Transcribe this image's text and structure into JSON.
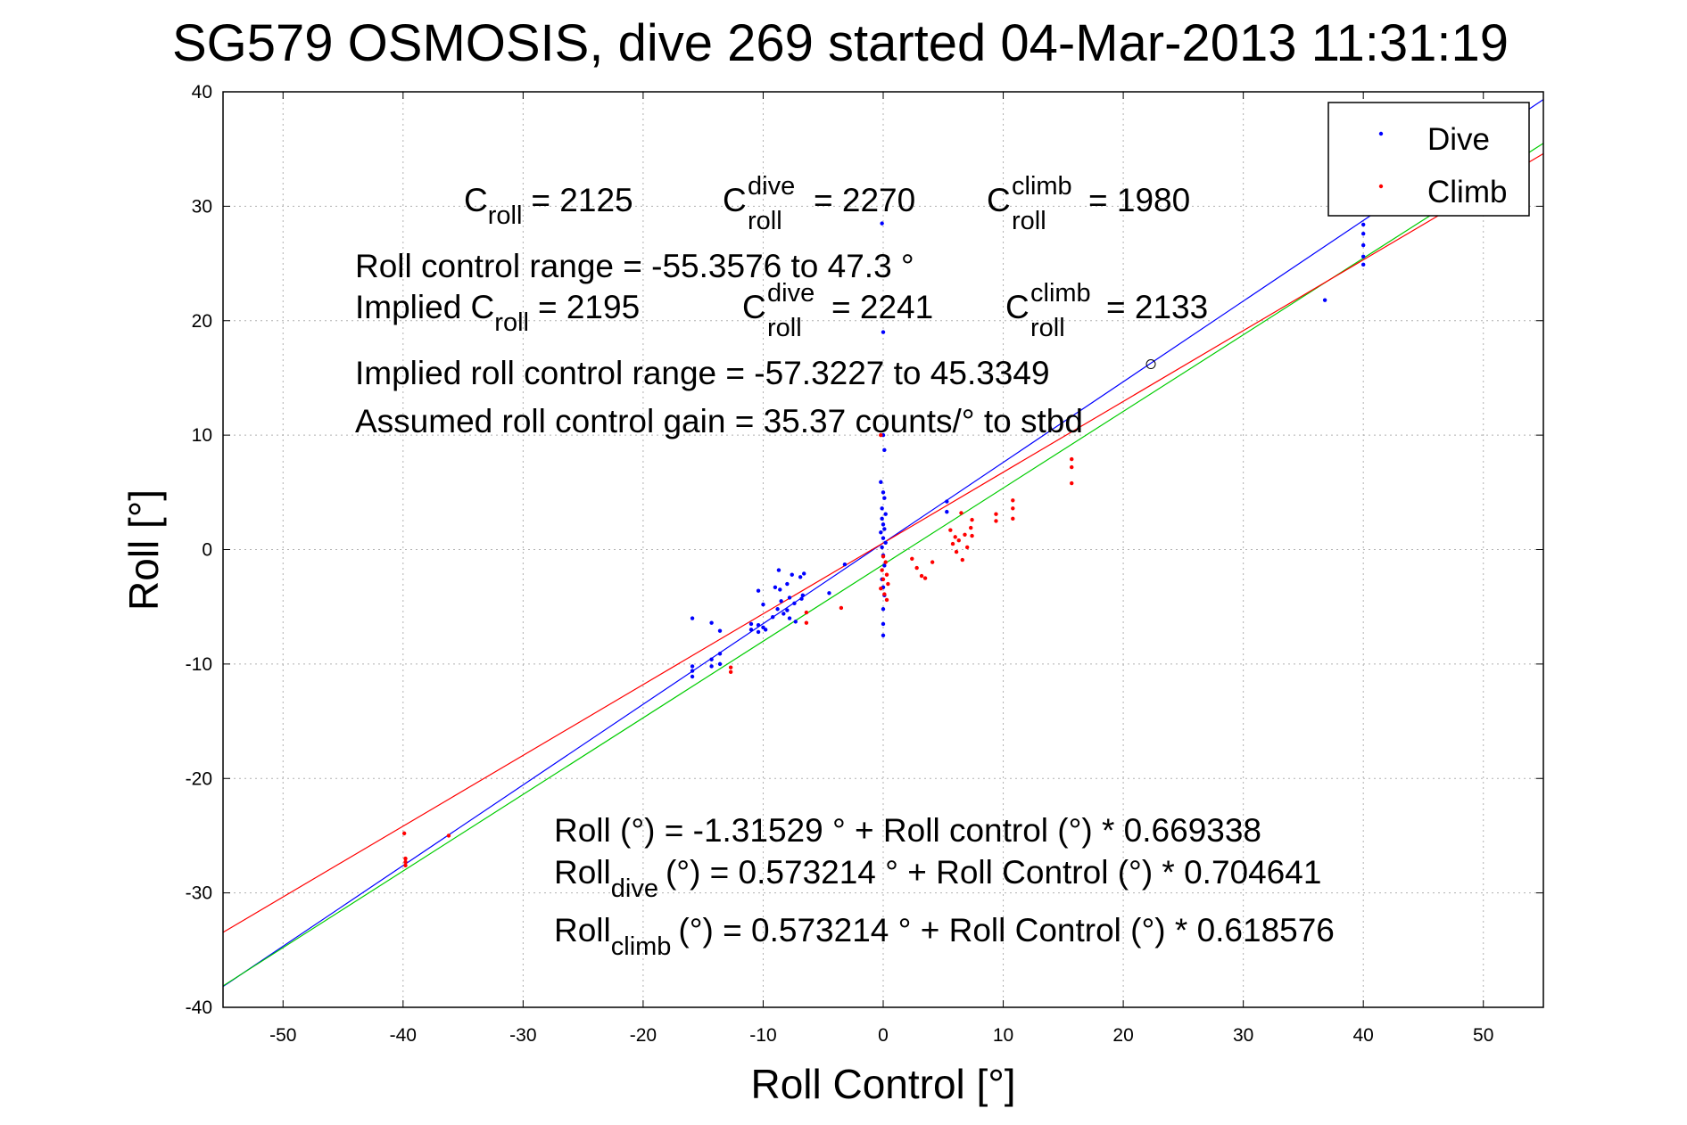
{
  "chart_data": {
    "type": "scatter",
    "title": "SG579 OSMOSIS, dive 269 started 04-Mar-2013 11:31:19",
    "xlabel": "Roll Control [°]",
    "ylabel": "Roll [°]",
    "xlim": [
      -55,
      55
    ],
    "ylim": [
      -40,
      40
    ],
    "xticks": [
      -50,
      -40,
      -30,
      -20,
      -10,
      0,
      10,
      20,
      30,
      40,
      50
    ],
    "yticks": [
      -40,
      -30,
      -20,
      -10,
      0,
      10,
      20,
      30,
      40
    ],
    "grid": true,
    "legend_position": "top-right",
    "colors": {
      "dive": "#0000ff",
      "climb": "#ff0000",
      "overall_fit": "#00cc00"
    },
    "series": [
      {
        "name": "Dive",
        "color": "#0000ff",
        "points": [
          [
            -15.9,
            -6
          ],
          [
            -15.9,
            -10.2
          ],
          [
            -15.9,
            -10.6
          ],
          [
            -15.9,
            -11.1
          ],
          [
            -14.3,
            -6.4
          ],
          [
            -14.3,
            -9.6
          ],
          [
            -14.3,
            -10.2
          ],
          [
            -13.6,
            -7.1
          ],
          [
            -13.6,
            -9.1
          ],
          [
            -13.6,
            -10.0
          ],
          [
            -11,
            -6.5
          ],
          [
            -11,
            -7.0
          ],
          [
            -10.4,
            -3.6
          ],
          [
            -10.4,
            -6.6
          ],
          [
            -10.4,
            -7.2
          ],
          [
            -10,
            -4.8
          ],
          [
            -10,
            -6.8
          ],
          [
            -9.8,
            -7.0
          ],
          [
            -9.2,
            -5.9
          ],
          [
            -9.0,
            -3.3
          ],
          [
            -8.8,
            -5.2
          ],
          [
            -8.7,
            -1.8
          ],
          [
            -8.6,
            -3.5
          ],
          [
            -8.5,
            -4.5
          ],
          [
            -8.3,
            -5.6
          ],
          [
            -8.0,
            -3.0
          ],
          [
            -8.0,
            -5.3
          ],
          [
            -7.8,
            -4.2
          ],
          [
            -7.8,
            -6.0
          ],
          [
            -7.6,
            -2.2
          ],
          [
            -7.4,
            -4.7
          ],
          [
            -7.3,
            -6.3
          ],
          [
            -6.9,
            -2.4
          ],
          [
            -6.8,
            -4.3
          ],
          [
            -6.7,
            -4.0
          ],
          [
            -6.6,
            -2.1
          ],
          [
            -4.5,
            -3.8
          ],
          [
            -3.2,
            -1.3
          ],
          [
            -0.1,
            28.5
          ],
          [
            0.0,
            19.0
          ],
          [
            0.0,
            10.0
          ],
          [
            0.1,
            8.7
          ],
          [
            -0.2,
            5.9
          ],
          [
            0.0,
            5.0
          ],
          [
            0.1,
            4.5
          ],
          [
            -0.1,
            3.6
          ],
          [
            0.2,
            3.1
          ],
          [
            -0.1,
            2.7
          ],
          [
            0.0,
            2.2
          ],
          [
            0.1,
            1.8
          ],
          [
            -0.2,
            1.5
          ],
          [
            0.0,
            1.0
          ],
          [
            0.2,
            0.6
          ],
          [
            -0.1,
            0.2
          ],
          [
            0.0,
            -0.5
          ],
          [
            0.1,
            -1.4
          ],
          [
            -0.1,
            -2.6
          ],
          [
            0.0,
            -3.3
          ],
          [
            0.1,
            -4.0
          ],
          [
            0.0,
            -5.2
          ],
          [
            0.0,
            -6.5
          ],
          [
            0.0,
            -7.5
          ],
          [
            5.3,
            4.2
          ],
          [
            5.3,
            3.3
          ],
          [
            36.8,
            21.8
          ],
          [
            40.0,
            24.9
          ],
          [
            40.0,
            25.6
          ],
          [
            40.0,
            26.6
          ],
          [
            40.0,
            27.6
          ],
          [
            40.0,
            28.4
          ],
          [
            40.0,
            29.6
          ],
          [
            40.1,
            30.9
          ]
        ]
      },
      {
        "name": "Climb",
        "color": "#ff0000",
        "points": [
          [
            -39.9,
            -24.8
          ],
          [
            -39.8,
            -27.0
          ],
          [
            -39.8,
            -27.3
          ],
          [
            -39.8,
            -27.6
          ],
          [
            -36.2,
            -25.0
          ],
          [
            -12.7,
            -10.3
          ],
          [
            -12.7,
            -10.7
          ],
          [
            -6.4,
            -5.5
          ],
          [
            -6.4,
            -6.4
          ],
          [
            -3.5,
            -5.1
          ],
          [
            -0.2,
            10.0
          ],
          [
            0.0,
            -0.6
          ],
          [
            0.2,
            -1.1
          ],
          [
            -0.1,
            -1.8
          ],
          [
            0.3,
            -2.2
          ],
          [
            0.0,
            -2.6
          ],
          [
            0.4,
            -3.0
          ],
          [
            -0.2,
            -3.4
          ],
          [
            0.1,
            -3.9
          ],
          [
            0.3,
            -4.4
          ],
          [
            2.4,
            -0.8
          ],
          [
            2.8,
            -1.6
          ],
          [
            3.2,
            -2.3
          ],
          [
            3.5,
            -2.5
          ],
          [
            4.1,
            -1.1
          ],
          [
            5.6,
            1.7
          ],
          [
            5.8,
            0.5
          ],
          [
            6.0,
            1.1
          ],
          [
            6.1,
            -0.2
          ],
          [
            6.3,
            0.8
          ],
          [
            6.5,
            3.2
          ],
          [
            6.6,
            -0.9
          ],
          [
            6.8,
            1.3
          ],
          [
            7.0,
            0.2
          ],
          [
            7.3,
            1.9
          ],
          [
            7.4,
            2.6
          ],
          [
            7.4,
            1.2
          ],
          [
            9.4,
            3.1
          ],
          [
            9.4,
            2.5
          ],
          [
            10.8,
            4.3
          ],
          [
            10.8,
            3.6
          ],
          [
            10.8,
            2.7
          ],
          [
            15.7,
            7.9
          ],
          [
            15.7,
            7.2
          ],
          [
            15.7,
            5.8
          ]
        ]
      }
    ],
    "fit_lines": [
      {
        "label": "Dive fit",
        "color": "#0000ff",
        "intercept": 0.573214,
        "slope": 0.704641
      },
      {
        "label": "Overall fit",
        "color": "#00cc00",
        "intercept": -1.31529,
        "slope": 0.669338
      },
      {
        "label": "Climb fit",
        "color": "#ff0000",
        "intercept": 0.573214,
        "slope": 0.618576
      }
    ],
    "open_markers": [
      [
        22.3,
        16.2
      ]
    ],
    "annotations": {
      "c_roll": "C",
      "c_roll_sub": "roll",
      "c_roll_value": "= 2125",
      "c_dive": "C",
      "c_dive_sup": "dive",
      "c_dive_sub": "roll",
      "c_dive_value": "= 2270",
      "c_climb": "C",
      "c_climb_sup": "climb",
      "c_climb_sub": "roll",
      "c_climb_value": "= 1980",
      "roll_range": "Roll control range = -55.3576 to 47.3 °",
      "implied_prefix": "Implied C",
      "implied_sub": "roll",
      "implied_value": "= 2195",
      "implied_dive": "C",
      "implied_dive_sup": "dive",
      "implied_dive_sub": "roll",
      "implied_dive_value": "= 2241",
      "implied_climb": "C",
      "implied_climb_sup": "climb",
      "implied_climb_sub": "roll",
      "implied_climb_value": "= 2133",
      "implied_range": "Implied roll control range = -57.3227 to 45.3349",
      "gain": "Assumed roll control gain = 35.37 counts/° to stbd",
      "eq_overall": "Roll (°) = -1.31529 ° + Roll control (°) * 0.669338",
      "eq_dive_prefix": "Roll",
      "eq_dive_sub": "dive",
      "eq_dive_rest": "(°) = 0.573214 ° + Roll Control (°) * 0.704641",
      "eq_climb_prefix": "Roll",
      "eq_climb_sub": "climb",
      "eq_climb_rest": "(°) = 0.573214 ° + Roll Control (°) * 0.618576"
    }
  }
}
